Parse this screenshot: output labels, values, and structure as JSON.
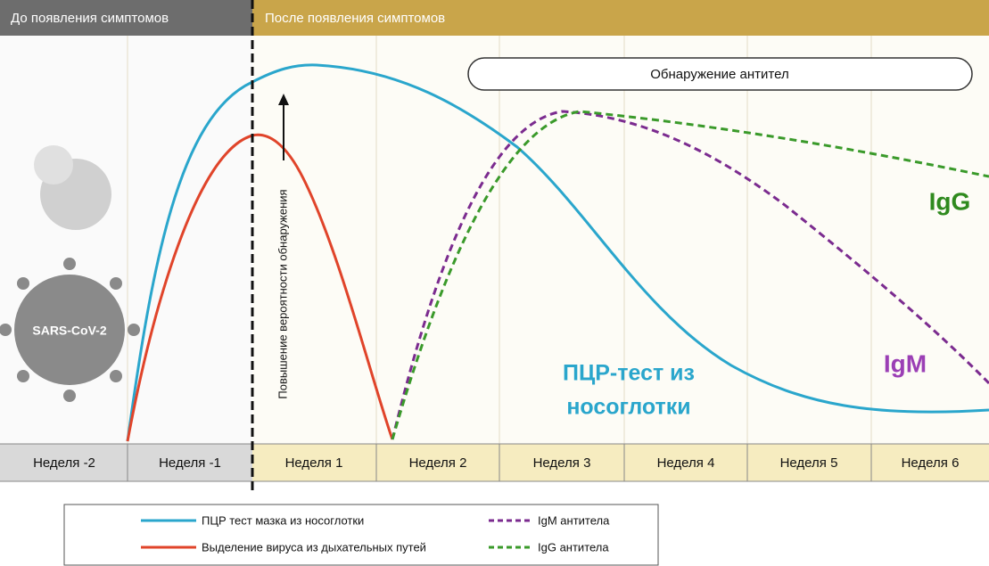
{
  "header": {
    "before": "До появления симптомов",
    "after": "После появления симптомов"
  },
  "antibody_detection": "Обнаружение антител",
  "arrow_label": "Повышение вероятности обнаружения",
  "virus_label": "SARS-CoV-2",
  "curve_labels": {
    "igg": "IgG",
    "igm": "IgM",
    "pcr": [
      "ПЦР-тест из",
      "носоглотки"
    ]
  },
  "weeks": [
    "Неделя -2",
    "Неделя -1",
    "Неделя 1",
    "Неделя 2",
    "Неделя 3",
    "Неделя 4",
    "Неделя 5",
    "Неделя 6"
  ],
  "legend": [
    "ПЦР тест мазка из носоглотки",
    "Выделение вируса из дыхательных путей",
    "IgM антитела",
    "IgG антитела"
  ]
}
